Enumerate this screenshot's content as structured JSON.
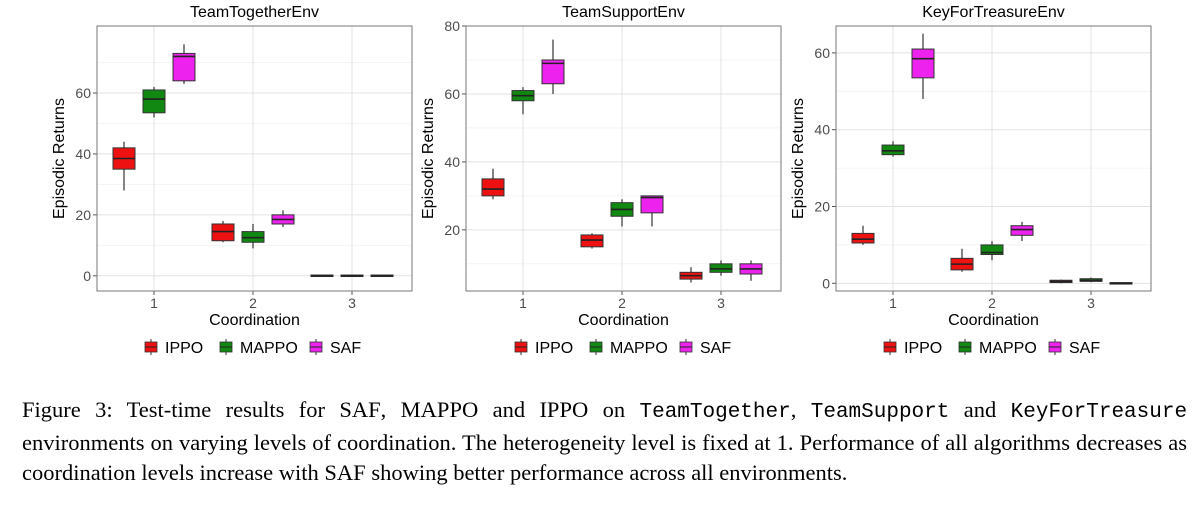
{
  "figure": {
    "caption": {
      "label": "Figure 3:",
      "t1": "Test-time results for",
      "saf": "SAF",
      "t2": ", MAPPO and IPPO on",
      "env1": "TeamTogether",
      "sep": ",",
      "env2": "TeamSupport",
      "and": "and",
      "env3": "KeyForTreasure",
      "t3": "environments on varying levels of coordination.  The heterogeneity level is fixed at 1. Performance of all algorithms decreases as coordination levels increase with",
      "t4": "showing better performance across all environments."
    }
  },
  "colors": {
    "IPPO": "#ee1111",
    "MAPPO": "#118811",
    "SAF": "#ee22ee"
  },
  "chart_data": [
    {
      "type": "box",
      "title": "TeamTogetherEnv",
      "xlabel": "Coordination",
      "ylabel": "Episodic Returns",
      "categories": [
        "1",
        "2",
        "3"
      ],
      "ylim": [
        -5,
        82
      ],
      "yticks": [
        0,
        20,
        40,
        60
      ],
      "legend": [
        "IPPO",
        "MAPPO",
        "SAF"
      ],
      "series": [
        {
          "name": "IPPO",
          "boxes": [
            {
              "x": "1",
              "low": 28,
              "q1": 35,
              "median": 38.5,
              "q3": 42,
              "high": 44
            },
            {
              "x": "2",
              "low": 11,
              "q1": 11.5,
              "median": 14.5,
              "q3": 17,
              "high": 18
            },
            {
              "x": "3",
              "low": 0,
              "q1": 0,
              "median": 0,
              "q3": 0,
              "high": 0
            }
          ]
        },
        {
          "name": "MAPPO",
          "boxes": [
            {
              "x": "1",
              "low": 52,
              "q1": 53.5,
              "median": 58,
              "q3": 61,
              "high": 62
            },
            {
              "x": "2",
              "low": 9,
              "q1": 11,
              "median": 12.5,
              "q3": 14.5,
              "high": 17
            },
            {
              "x": "3",
              "low": 0,
              "q1": 0,
              "median": 0,
              "q3": 0,
              "high": 0
            }
          ]
        },
        {
          "name": "SAF",
          "boxes": [
            {
              "x": "1",
              "low": 63,
              "q1": 64,
              "median": 72,
              "q3": 73,
              "high": 76
            },
            {
              "x": "2",
              "low": 16,
              "q1": 17,
              "median": 18.5,
              "q3": 20,
              "high": 21.5
            },
            {
              "x": "3",
              "low": 0,
              "q1": 0,
              "median": 0,
              "q3": 0,
              "high": 0
            }
          ]
        }
      ]
    },
    {
      "type": "box",
      "title": "TeamSupportEnv",
      "xlabel": "Coordination",
      "ylabel": "Episodic Returns",
      "categories": [
        "1",
        "2",
        "3"
      ],
      "ylim": [
        2,
        80
      ],
      "yticks": [
        20,
        40,
        60,
        80
      ],
      "legend": [
        "IPPO",
        "MAPPO",
        "SAF"
      ],
      "series": [
        {
          "name": "IPPO",
          "boxes": [
            {
              "x": "1",
              "low": 29,
              "q1": 30,
              "median": 32,
              "q3": 35,
              "high": 38
            },
            {
              "x": "2",
              "low": 14.5,
              "q1": 15,
              "median": 17,
              "q3": 18.5,
              "high": 19
            },
            {
              "x": "3",
              "low": 4.5,
              "q1": 5.5,
              "median": 6.5,
              "q3": 7.5,
              "high": 9
            }
          ]
        },
        {
          "name": "MAPPO",
          "boxes": [
            {
              "x": "1",
              "low": 54,
              "q1": 58,
              "median": 59.5,
              "q3": 61,
              "high": 62
            },
            {
              "x": "2",
              "low": 21,
              "q1": 24,
              "median": 26,
              "q3": 28,
              "high": 29
            },
            {
              "x": "3",
              "low": 6.5,
              "q1": 7.5,
              "median": 8.5,
              "q3": 10,
              "high": 11
            }
          ]
        },
        {
          "name": "SAF",
          "boxes": [
            {
              "x": "1",
              "low": 60,
              "q1": 63,
              "median": 69,
              "q3": 70,
              "high": 76
            },
            {
              "x": "2",
              "low": 21,
              "q1": 25,
              "median": 29.5,
              "q3": 30,
              "high": 30
            },
            {
              "x": "3",
              "low": 5,
              "q1": 7,
              "median": 8.5,
              "q3": 10,
              "high": 11
            }
          ]
        }
      ]
    },
    {
      "type": "box",
      "title": "KeyForTreasureEnv",
      "xlabel": "Coordination",
      "ylabel": "Episodic Returns",
      "categories": [
        "1",
        "2",
        "3"
      ],
      "ylim": [
        -2,
        67
      ],
      "yticks": [
        0,
        20,
        40,
        60
      ],
      "legend": [
        "IPPO",
        "MAPPO",
        "SAF"
      ],
      "series": [
        {
          "name": "IPPO",
          "boxes": [
            {
              "x": "1",
              "low": 10,
              "q1": 10.5,
              "median": 11.5,
              "q3": 13,
              "high": 15
            },
            {
              "x": "2",
              "low": 3,
              "q1": 3.5,
              "median": 5,
              "q3": 6.5,
              "high": 9
            },
            {
              "x": "3",
              "low": 0,
              "q1": 0.2,
              "median": 0.5,
              "q3": 0.8,
              "high": 1
            }
          ]
        },
        {
          "name": "MAPPO",
          "boxes": [
            {
              "x": "1",
              "low": 33,
              "q1": 33.5,
              "median": 34.5,
              "q3": 36,
              "high": 37
            },
            {
              "x": "2",
              "low": 6,
              "q1": 7.5,
              "median": 8,
              "q3": 10,
              "high": 11
            },
            {
              "x": "3",
              "low": 0.3,
              "q1": 0.5,
              "median": 0.8,
              "q3": 1.2,
              "high": 1.5
            }
          ]
        },
        {
          "name": "SAF",
          "boxes": [
            {
              "x": "1",
              "low": 48,
              "q1": 53.5,
              "median": 58.5,
              "q3": 61,
              "high": 65
            },
            {
              "x": "2",
              "low": 11,
              "q1": 12.5,
              "median": 14,
              "q3": 15,
              "high": 16
            },
            {
              "x": "3",
              "low": 0,
              "q1": 0,
              "median": 0,
              "q3": 0,
              "high": 0
            }
          ]
        }
      ]
    }
  ]
}
